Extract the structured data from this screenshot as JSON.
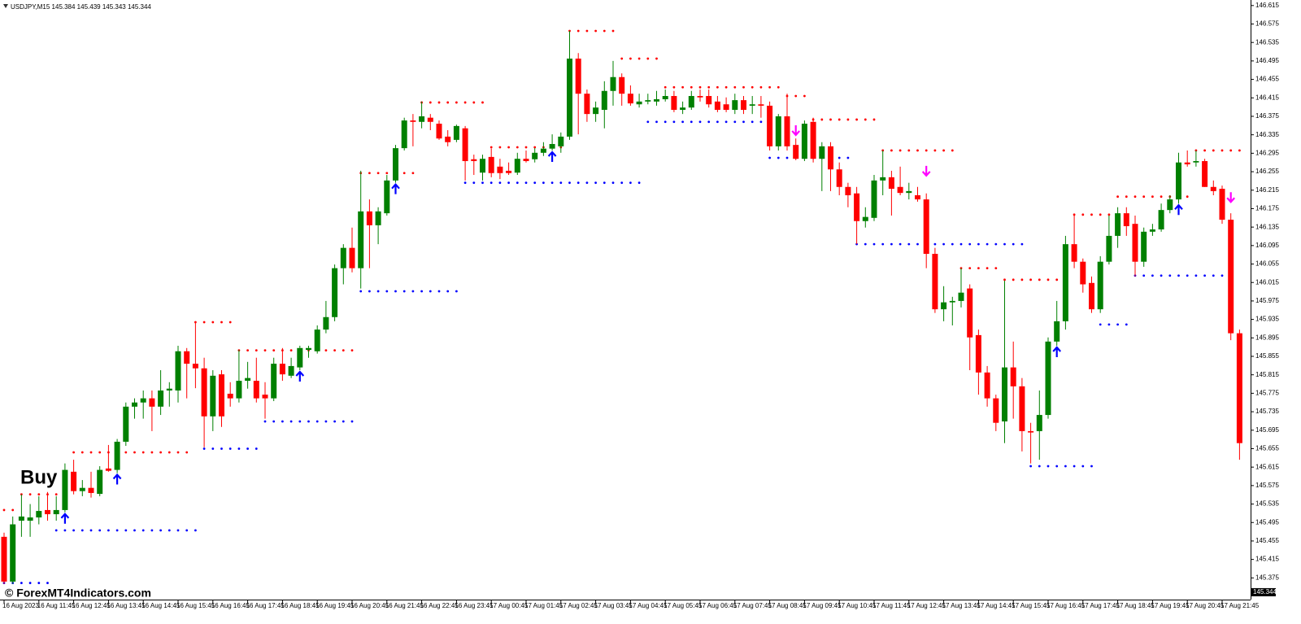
{
  "chart_data": {
    "type": "candlestick",
    "header": "USDJPY,M15  145.384 145.439 145.343 145.344",
    "annotations": [
      "Buy",
      "© ForexMT4Indicators.com"
    ],
    "last_price": 145.344,
    "up_color": "#008000",
    "down_color": "#ff0000",
    "resistance_color": "#ff0000",
    "support_color": "#0000ff",
    "up_arrow_color": "#0000ff",
    "down_arrow_color": "#ff00ff",
    "grid": false,
    "ylim": [
      145.328,
      146.627
    ],
    "yticks": [
      146.615,
      146.575,
      146.535,
      146.495,
      146.455,
      146.415,
      146.375,
      146.335,
      146.295,
      146.255,
      146.215,
      146.175,
      146.135,
      146.095,
      146.055,
      146.015,
      145.975,
      145.935,
      145.895,
      145.855,
      145.815,
      145.775,
      145.735,
      145.695,
      145.655,
      145.615,
      145.575,
      145.535,
      145.495,
      145.455,
      145.415,
      145.375
    ],
    "categories": [
      "16 Aug 2023",
      null,
      null,
      null,
      "16 Aug 11:45",
      null,
      null,
      null,
      "16 Aug 12:45",
      null,
      null,
      null,
      "16 Aug 13:45",
      null,
      null,
      null,
      "16 Aug 14:45",
      null,
      null,
      null,
      "16 Aug 15:45",
      null,
      null,
      null,
      "16 Aug 16:45",
      null,
      null,
      null,
      "16 Aug 17:45",
      null,
      null,
      null,
      "16 Aug 18:45",
      null,
      null,
      null,
      "16 Aug 19:45",
      null,
      null,
      null,
      "16 Aug 20:45",
      null,
      null,
      null,
      "16 Aug 21:45",
      null,
      null,
      null,
      "16 Aug 22:45",
      null,
      null,
      null,
      "16 Aug 23:45",
      null,
      null,
      null,
      "17 Aug 00:45",
      null,
      null,
      null,
      "17 Aug 01:45",
      null,
      null,
      null,
      "17 Aug 02:45",
      null,
      null,
      null,
      "17 Aug 03:45",
      null,
      null,
      null,
      "17 Aug 04:45",
      null,
      null,
      null,
      "17 Aug 05:45",
      null,
      null,
      null,
      "17 Aug 06:45",
      null,
      null,
      null,
      "17 Aug 07:45",
      null,
      null,
      null,
      "17 Aug 08:45",
      null,
      null,
      null,
      "17 Aug 09:45",
      null,
      null,
      null,
      "17 Aug 10:45",
      null,
      null,
      null,
      "17 Aug 11:45",
      null,
      null,
      null,
      "17 Aug 12:45",
      null,
      null,
      null,
      "17 Aug 13:45",
      null,
      null,
      null,
      "17 Aug 14:45",
      null,
      null,
      null,
      "17 Aug 15:45",
      null,
      null,
      null,
      "17 Aug 16:45",
      null,
      null,
      null,
      "17 Aug 17:45",
      null,
      null,
      null,
      "17 Aug 18:45",
      null,
      null,
      null,
      "17 Aug 19:45",
      null,
      null,
      null,
      "17 Aug 20:45",
      null,
      null,
      null,
      "17 Aug 21:45",
      null,
      null
    ],
    "open": [
      145.464,
      145.367,
      145.499,
      145.499,
      145.506,
      145.522,
      145.513,
      145.522,
      145.605,
      145.563,
      145.57,
      145.557,
      145.612,
      145.609,
      145.67,
      145.746,
      145.755,
      145.764,
      145.746,
      145.781,
      145.781,
      145.866,
      145.839,
      145.829,
      145.725,
      145.816,
      145.774,
      145.764,
      145.802,
      145.802,
      145.772,
      145.764,
      145.839,
      145.813,
      145.831,
      145.869,
      145.866,
      145.913,
      145.94,
      146.046,
      146.09,
      146.046,
      146.169,
      146.139,
      146.165,
      146.236,
      146.306,
      146.366,
      146.363,
      146.372,
      146.359,
      146.331,
      146.324,
      146.349,
      146.282,
      146.253,
      146.287,
      146.266,
      146.257,
      146.253,
      146.283,
      146.282,
      146.296,
      146.305,
      146.31,
      146.331,
      146.5,
      146.424,
      146.38,
      146.389,
      146.43,
      146.46,
      146.424,
      146.401,
      146.407,
      146.407,
      146.412,
      146.419,
      146.389,
      146.394,
      146.419,
      146.419,
      146.407,
      146.401,
      146.389,
      146.41,
      146.398,
      146.401,
      146.398,
      146.31,
      146.375,
      146.313,
      146.283,
      146.363,
      146.283,
      146.31,
      146.26,
      146.222,
      146.208,
      146.148,
      146.155,
      146.236,
      146.243,
      146.222,
      146.209,
      146.204,
      146.195,
      146.077,
      145.957,
      145.972,
      145.975,
      146.002,
      145.901,
      145.82,
      145.764,
      145.714,
      145.831,
      145.79,
      145.693,
      145.693,
      145.728,
      145.887,
      145.931,
      146.098,
      146.06,
      146.014,
      145.957,
      146.06,
      146.116,
      146.165,
      146.142,
      146.06,
      146.125,
      146.13,
      146.172,
      146.195,
      146.275,
      146.275,
      146.278,
      146.222,
      146.218,
      146.151,
      145.905
    ],
    "high": [
      145.473,
      145.508,
      145.556,
      145.535,
      145.552,
      145.561,
      145.552,
      145.623,
      145.631,
      145.587,
      145.605,
      145.617,
      145.663,
      145.676,
      145.755,
      145.764,
      145.781,
      145.781,
      145.825,
      145.799,
      145.878,
      145.873,
      145.931,
      145.852,
      145.825,
      145.825,
      145.799,
      145.869,
      145.843,
      145.852,
      145.799,
      145.852,
      145.873,
      145.852,
      145.878,
      145.878,
      145.922,
      145.975,
      146.054,
      146.098,
      146.134,
      146.257,
      146.195,
      146.178,
      146.248,
      146.313,
      146.372,
      146.38,
      146.407,
      146.38,
      146.366,
      146.345,
      146.357,
      146.354,
      146.292,
      146.292,
      146.305,
      146.283,
      146.275,
      146.296,
      146.301,
      146.306,
      146.319,
      146.336,
      146.34,
      146.56,
      146.512,
      146.433,
      146.407,
      146.451,
      146.495,
      146.468,
      146.442,
      146.424,
      146.424,
      146.43,
      146.433,
      146.43,
      146.407,
      146.43,
      146.433,
      146.433,
      146.419,
      146.416,
      146.424,
      146.419,
      146.419,
      146.419,
      146.407,
      146.38,
      146.424,
      146.327,
      146.366,
      146.372,
      146.319,
      146.319,
      146.275,
      146.231,
      146.222,
      146.178,
      146.248,
      146.301,
      146.257,
      146.266,
      146.231,
      146.222,
      146.208,
      146.09,
      146.007,
      145.984,
      146.046,
      146.011,
      145.913,
      145.834,
      145.772,
      146.019,
      145.887,
      145.808,
      145.711,
      145.781,
      145.896,
      145.975,
      146.116,
      146.16,
      146.067,
      146.028,
      146.072,
      146.16,
      146.178,
      146.178,
      146.16,
      146.134,
      146.142,
      146.186,
      146.204,
      146.296,
      146.301,
      146.301,
      146.283,
      146.236,
      146.225,
      146.165,
      145.913
    ],
    "low": [
      145.362,
      145.362,
      145.464,
      145.464,
      145.491,
      145.499,
      145.499,
      145.517,
      145.556,
      145.552,
      145.549,
      145.552,
      145.605,
      145.602,
      145.661,
      145.72,
      145.72,
      145.693,
      145.728,
      145.746,
      145.755,
      145.764,
      145.786,
      145.658,
      145.693,
      145.702,
      145.746,
      145.755,
      145.785,
      145.755,
      145.72,
      145.758,
      145.802,
      145.808,
      145.825,
      145.852,
      145.861,
      145.905,
      145.931,
      146.011,
      146.037,
      146.002,
      146.046,
      146.098,
      146.16,
      146.231,
      146.301,
      146.31,
      146.349,
      146.345,
      146.324,
      146.31,
      146.319,
      146.236,
      146.248,
      146.236,
      146.243,
      146.239,
      146.248,
      146.248,
      146.275,
      146.275,
      146.289,
      146.301,
      146.296,
      146.324,
      146.336,
      146.363,
      146.363,
      146.349,
      146.398,
      146.398,
      146.398,
      146.394,
      146.401,
      146.398,
      146.407,
      146.384,
      146.38,
      146.389,
      146.407,
      146.394,
      146.384,
      146.384,
      146.38,
      146.38,
      146.38,
      146.372,
      146.301,
      146.301,
      146.301,
      146.28,
      146.278,
      146.275,
      146.213,
      146.213,
      146.204,
      146.178,
      146.098,
      146.134,
      146.148,
      146.204,
      146.16,
      146.204,
      146.195,
      146.19,
      146.046,
      145.949,
      145.931,
      145.922,
      145.961,
      145.825,
      145.772,
      145.746,
      145.693,
      145.667,
      145.72,
      145.649,
      145.623,
      145.631,
      145.72,
      145.878,
      145.913,
      146.046,
      145.993,
      145.949,
      145.949,
      146.054,
      146.09,
      146.116,
      146.028,
      146.049,
      146.116,
      146.125,
      146.165,
      146.186,
      146.266,
      146.266,
      146.222,
      146.204,
      146.142,
      145.89,
      145.631
    ],
    "close": [
      145.367,
      145.491,
      145.508,
      145.506,
      145.52,
      145.513,
      145.522,
      145.609,
      145.563,
      145.57,
      145.559,
      145.609,
      145.607,
      145.67,
      145.746,
      145.755,
      145.764,
      145.746,
      145.781,
      145.785,
      145.866,
      145.839,
      145.829,
      145.725,
      145.813,
      145.725,
      145.764,
      145.802,
      145.808,
      145.764,
      145.764,
      145.839,
      145.816,
      145.834,
      145.873,
      145.873,
      145.913,
      145.94,
      146.046,
      146.09,
      146.046,
      146.169,
      146.139,
      146.169,
      146.236,
      146.306,
      146.366,
      146.363,
      146.375,
      146.363,
      146.327,
      146.319,
      146.354,
      146.278,
      146.278,
      146.283,
      146.252,
      146.252,
      146.252,
      146.283,
      146.278,
      146.296,
      146.305,
      146.315,
      146.331,
      146.5,
      146.424,
      146.38,
      146.394,
      146.43,
      146.46,
      146.424,
      146.403,
      146.407,
      146.41,
      146.412,
      146.419,
      146.389,
      146.394,
      146.419,
      146.416,
      146.401,
      146.389,
      146.389,
      146.41,
      146.389,
      146.401,
      146.398,
      146.31,
      146.375,
      146.31,
      146.283,
      146.359,
      146.283,
      146.31,
      146.26,
      146.222,
      146.204,
      146.148,
      146.157,
      146.236,
      146.243,
      146.218,
      146.209,
      146.213,
      146.195,
      146.077,
      145.957,
      145.972,
      145.975,
      145.993,
      145.896,
      145.82,
      145.764,
      145.711,
      145.831,
      145.79,
      145.693,
      145.69,
      145.728,
      145.887,
      145.931,
      146.098,
      146.06,
      146.011,
      145.957,
      146.06,
      146.116,
      146.165,
      146.137,
      146.06,
      146.125,
      146.13,
      146.172,
      146.195,
      146.275,
      146.271,
      146.278,
      146.222,
      146.213,
      146.151,
      145.905,
      145.667
    ],
    "resistance": [
      145.522,
      145.522,
      145.556,
      145.556,
      145.556,
      145.556,
      145.556,
      null,
      145.647,
      145.647,
      145.647,
      145.647,
      145.647,
      145.647,
      145.647,
      145.647,
      145.647,
      145.647,
      145.647,
      145.647,
      145.647,
      145.647,
      145.929,
      145.929,
      145.929,
      145.929,
      145.929,
      145.868,
      145.868,
      145.868,
      145.868,
      145.868,
      145.868,
      145.868,
      145.868,
      145.868,
      145.868,
      145.868,
      145.868,
      145.868,
      145.868,
      146.252,
      146.252,
      146.252,
      146.252,
      146.252,
      146.252,
      146.252,
      146.405,
      146.405,
      146.405,
      146.405,
      146.405,
      146.405,
      146.405,
      146.405,
      146.308,
      146.308,
      146.308,
      146.308,
      146.308,
      146.308,
      146.308,
      146.308,
      146.308,
      146.56,
      146.56,
      146.56,
      146.56,
      146.56,
      146.56,
      146.5,
      146.5,
      146.5,
      146.5,
      146.5,
      146.438,
      146.438,
      146.438,
      146.438,
      146.438,
      146.438,
      146.438,
      146.438,
      146.438,
      146.438,
      146.438,
      146.438,
      146.438,
      146.438,
      146.419,
      146.419,
      146.419,
      146.368,
      146.368,
      146.368,
      146.368,
      146.368,
      146.368,
      146.368,
      146.368,
      146.301,
      146.301,
      146.301,
      146.301,
      146.301,
      146.301,
      146.301,
      146.301,
      146.301,
      146.046,
      146.046,
      146.046,
      146.046,
      146.046,
      146.021,
      146.021,
      146.021,
      146.021,
      146.021,
      146.021,
      146.021,
      null,
      146.162,
      146.162,
      146.162,
      146.162,
      146.162,
      146.201,
      146.201,
      146.201,
      146.201,
      146.201,
      146.201,
      146.201,
      146.201,
      146.201,
      146.301,
      146.301,
      146.301,
      146.301,
      146.301,
      146.301
    ],
    "support": [
      145.364,
      145.364,
      145.364,
      145.364,
      145.364,
      145.364,
      145.478,
      145.478,
      145.478,
      145.478,
      145.478,
      145.478,
      145.478,
      145.478,
      145.478,
      145.478,
      145.478,
      145.478,
      145.478,
      145.478,
      145.478,
      145.478,
      145.478,
      145.655,
      145.655,
      145.655,
      145.655,
      145.655,
      145.655,
      145.655,
      145.714,
      145.714,
      145.714,
      145.714,
      145.714,
      145.714,
      145.714,
      145.714,
      145.714,
      145.714,
      145.714,
      145.996,
      145.996,
      145.996,
      145.996,
      145.996,
      145.996,
      145.996,
      145.996,
      145.996,
      145.996,
      145.996,
      145.996,
      146.231,
      146.231,
      146.231,
      146.231,
      146.231,
      146.231,
      146.231,
      146.231,
      146.231,
      146.231,
      146.231,
      146.231,
      146.231,
      146.231,
      146.231,
      146.231,
      146.231,
      146.231,
      146.231,
      146.231,
      146.231,
      146.363,
      146.363,
      146.363,
      146.363,
      146.363,
      146.363,
      146.363,
      146.363,
      146.363,
      146.363,
      146.363,
      146.363,
      146.363,
      146.363,
      146.285,
      146.285,
      146.285,
      146.285,
      146.285,
      146.285,
      146.285,
      146.285,
      146.285,
      146.285,
      146.098,
      146.098,
      146.098,
      146.098,
      146.098,
      146.098,
      146.098,
      146.098,
      146.098,
      146.098,
      146.098,
      146.098,
      146.098,
      146.098,
      146.098,
      146.098,
      146.098,
      146.098,
      146.098,
      146.098,
      145.617,
      145.617,
      145.617,
      145.617,
      145.617,
      145.617,
      145.617,
      145.617,
      145.924,
      145.924,
      145.924,
      145.924,
      146.03,
      146.03,
      146.03,
      146.03,
      146.03,
      146.03,
      146.03,
      146.03,
      146.03,
      146.03,
      146.03,
      146.03,
      null
    ],
    "up_arrows": [
      null,
      null,
      null,
      null,
      null,
      null,
      null,
      145.517,
      null,
      null,
      null,
      null,
      null,
      145.602,
      null,
      null,
      null,
      null,
      null,
      null,
      null,
      null,
      null,
      null,
      null,
      null,
      null,
      null,
      null,
      null,
      null,
      null,
      null,
      null,
      145.825,
      null,
      null,
      null,
      null,
      null,
      null,
      null,
      null,
      null,
      null,
      146.231,
      null,
      null,
      null,
      null,
      null,
      null,
      null,
      null,
      null,
      null,
      null,
      null,
      null,
      null,
      null,
      null,
      null,
      146.301,
      null,
      null,
      null,
      null,
      null,
      null,
      null,
      null,
      null,
      null,
      null,
      null,
      null,
      null,
      null,
      null,
      null,
      null,
      null,
      null,
      null,
      null,
      null,
      null,
      null,
      null,
      null,
      null,
      null,
      null,
      null,
      null,
      null,
      null,
      null,
      null,
      null,
      null,
      null,
      null,
      null,
      null,
      null,
      null,
      null,
      null,
      null,
      null,
      null,
      null,
      null,
      null,
      null,
      null,
      null,
      null,
      null,
      145.878,
      null,
      null,
      null,
      null,
      null,
      null,
      null,
      null,
      null,
      null,
      null,
      null,
      null,
      146.186,
      null,
      null,
      null,
      null,
      null,
      null,
      null
    ],
    "down_arrows": [
      null,
      null,
      null,
      null,
      null,
      null,
      null,
      null,
      null,
      null,
      null,
      null,
      null,
      null,
      null,
      null,
      null,
      null,
      null,
      null,
      null,
      null,
      null,
      null,
      null,
      null,
      null,
      null,
      null,
      null,
      null,
      null,
      null,
      null,
      null,
      null,
      null,
      null,
      null,
      null,
      null,
      null,
      null,
      null,
      null,
      null,
      null,
      null,
      null,
      null,
      null,
      null,
      null,
      null,
      null,
      null,
      null,
      null,
      null,
      null,
      null,
      null,
      null,
      null,
      null,
      null,
      null,
      null,
      null,
      null,
      null,
      null,
      null,
      null,
      null,
      null,
      null,
      null,
      null,
      null,
      null,
      null,
      null,
      null,
      null,
      null,
      null,
      null,
      null,
      null,
      null,
      146.331,
      null,
      null,
      null,
      null,
      null,
      null,
      null,
      null,
      null,
      null,
      null,
      null,
      null,
      null,
      146.243,
      null,
      null,
      null,
      null,
      null,
      null,
      null,
      null,
      null,
      null,
      null,
      null,
      null,
      null,
      null,
      null,
      null,
      null,
      null,
      null,
      null,
      null,
      null,
      null,
      null,
      null,
      null,
      null,
      null,
      null,
      null,
      null,
      null,
      null,
      146.186,
      null
    ]
  }
}
